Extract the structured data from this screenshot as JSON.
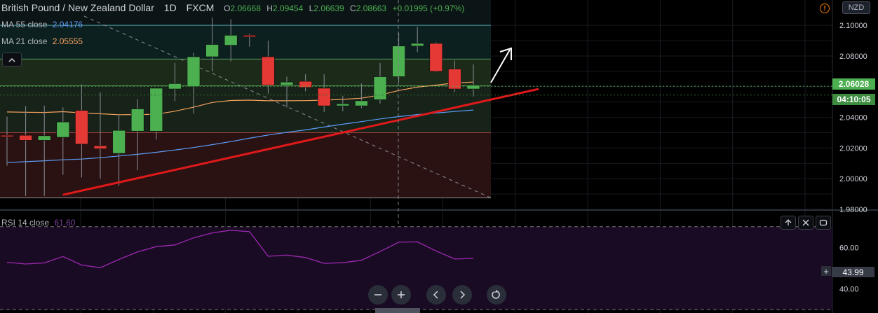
{
  "header": {
    "symbol": "British Pound / New Zealand Dollar",
    "interval": "1D",
    "exchange": "FXCM",
    "o_label": "O",
    "o_value": "2.06668",
    "h_label": "H",
    "h_value": "2.09454",
    "l_label": "L",
    "l_value": "2.06639",
    "c_label": "C",
    "c_value": "2.08663",
    "change": "+0.01995 (+0.97%)"
  },
  "indicators": {
    "ma55_label": "MA 55 close",
    "ma55_value": "2.04176",
    "ma21_label": "MA 21 close",
    "ma21_value": "2.05555",
    "rsi_label": "RSI 14 close",
    "rsi_value": "61.60"
  },
  "currency_button": "NZD",
  "alert_icon": "!",
  "price_axis_labels": [
    "2.10000",
    "2.08000",
    "2.06000",
    "2.04000",
    "2.02000",
    "2.00000",
    "1.98000"
  ],
  "current_price_label": "2.06028",
  "countdown_label": "04:10:05",
  "rsi_axis_labels": [
    "60.00",
    "40.00"
  ],
  "rsi_cursor_label": "43.99",
  "colors": {
    "up": "#4caf50",
    "down": "#e53935",
    "ma55": "#5b9cf6",
    "ma21": "#f5a25d",
    "trendline": "#e0191a",
    "rsi_line": "#9c27b0",
    "rsi_band": "#1a0b24",
    "zone_green": "#1c2a1a",
    "zone_red": "#2b1212",
    "zone_teal": "#0c2020"
  },
  "icons": {
    "zoom_out": "minus-icon",
    "zoom_in": "plus-icon",
    "scroll_left": "chevron-left-icon",
    "scroll_right": "chevron-right-icon",
    "reset": "reset-icon"
  },
  "chart_data": {
    "type": "candlestick",
    "y_range": [
      1.98,
      2.106
    ],
    "rsi_range": [
      30,
      75
    ],
    "candles": [
      {
        "o": 2.0283,
        "h": 2.0405,
        "l": 2.0085,
        "c": 2.028
      },
      {
        "o": 2.0283,
        "h": 2.0473,
        "l": 1.9888,
        "c": 2.025
      },
      {
        "o": 2.025,
        "h": 2.0476,
        "l": 1.9888,
        "c": 2.028
      },
      {
        "o": 2.027,
        "h": 2.0465,
        "l": 2.0025,
        "c": 2.037
      },
      {
        "o": 2.0445,
        "h": 2.0615,
        "l": 2.0008,
        "c": 2.0225
      },
      {
        "o": 2.0215,
        "h": 2.0563,
        "l": 2.0,
        "c": 2.0195
      },
      {
        "o": 2.0165,
        "h": 2.0418,
        "l": 1.9953,
        "c": 2.0315
      },
      {
        "o": 2.031,
        "h": 2.0518,
        "l": 2.0055,
        "c": 2.0455
      },
      {
        "o": 2.031,
        "h": 2.0585,
        "l": 2.0255,
        "c": 2.059
      },
      {
        "o": 2.0585,
        "h": 2.0755,
        "l": 2.0505,
        "c": 2.062
      },
      {
        "o": 2.06,
        "h": 2.082,
        "l": 2.0425,
        "c": 2.0795
      },
      {
        "o": 2.0795,
        "h": 2.105,
        "l": 2.07,
        "c": 2.0875
      },
      {
        "o": 2.087,
        "h": 2.104,
        "l": 2.0765,
        "c": 2.0935
      },
      {
        "o": 2.0935,
        "h": 2.0945,
        "l": 2.086,
        "c": 2.0925
      },
      {
        "o": 2.0795,
        "h": 2.09,
        "l": 2.0555,
        "c": 2.061
      },
      {
        "o": 2.061,
        "h": 2.0665,
        "l": 2.0465,
        "c": 2.063
      },
      {
        "o": 2.0635,
        "h": 2.068,
        "l": 2.057,
        "c": 2.0595
      },
      {
        "o": 2.059,
        "h": 2.068,
        "l": 2.0435,
        "c": 2.0475
      },
      {
        "o": 2.0475,
        "h": 2.054,
        "l": 2.044,
        "c": 2.0488
      },
      {
        "o": 2.0475,
        "h": 2.062,
        "l": 2.046,
        "c": 2.0508
      },
      {
        "o": 2.0515,
        "h": 2.0755,
        "l": 2.049,
        "c": 2.0665
      },
      {
        "o": 2.0665,
        "h": 2.095,
        "l": 2.063,
        "c": 2.0865
      },
      {
        "o": 2.0865,
        "h": 2.099,
        "l": 2.0825,
        "c": 2.0882
      },
      {
        "o": 2.0882,
        "h": 2.089,
        "l": 2.0695,
        "c": 2.07
      },
      {
        "o": 2.0715,
        "h": 2.077,
        "l": 2.0565,
        "c": 2.0585
      },
      {
        "o": 2.0585,
        "h": 2.0745,
        "l": 2.0535,
        "c": 2.061
      }
    ],
    "ma21": [
      2.0435,
      2.0433,
      2.0432,
      2.0437,
      2.0429,
      2.0423,
      2.0417,
      2.0418,
      2.042,
      2.044,
      2.0466,
      2.0497,
      2.051,
      2.0512,
      2.0508,
      2.0508,
      2.0509,
      2.0512,
      2.0517,
      2.0525,
      2.0545,
      2.0575,
      2.0597,
      2.061,
      2.0625,
      2.063
    ],
    "ma55": [
      2.0105,
      2.0111,
      2.0117,
      2.0123,
      2.0128,
      2.0137,
      2.0148,
      2.0159,
      2.0172,
      2.0187,
      2.0203,
      2.0222,
      2.0242,
      2.0264,
      2.0285,
      2.0302,
      2.0318,
      2.0337,
      2.0355,
      2.0372,
      2.039,
      2.0405,
      2.0418,
      2.0428,
      2.0438,
      2.0448
    ],
    "rsi": [
      52.8,
      52.0,
      52.5,
      55.6,
      51.5,
      50.2,
      54.2,
      57.8,
      60.4,
      61.2,
      64.6,
      67.0,
      68.3,
      67.6,
      55.7,
      56.3,
      55.1,
      52.3,
      52.6,
      53.8,
      58.0,
      62.5,
      62.7,
      58.3,
      54.4,
      54.7
    ],
    "fib_levels": [
      2.1,
      2.078,
      2.0605,
      2.03,
      1.9875
    ],
    "trendline": {
      "from_index": 3,
      "from_price": 1.9895,
      "to_index": 28.5,
      "to_price": 2.0585
    }
  }
}
